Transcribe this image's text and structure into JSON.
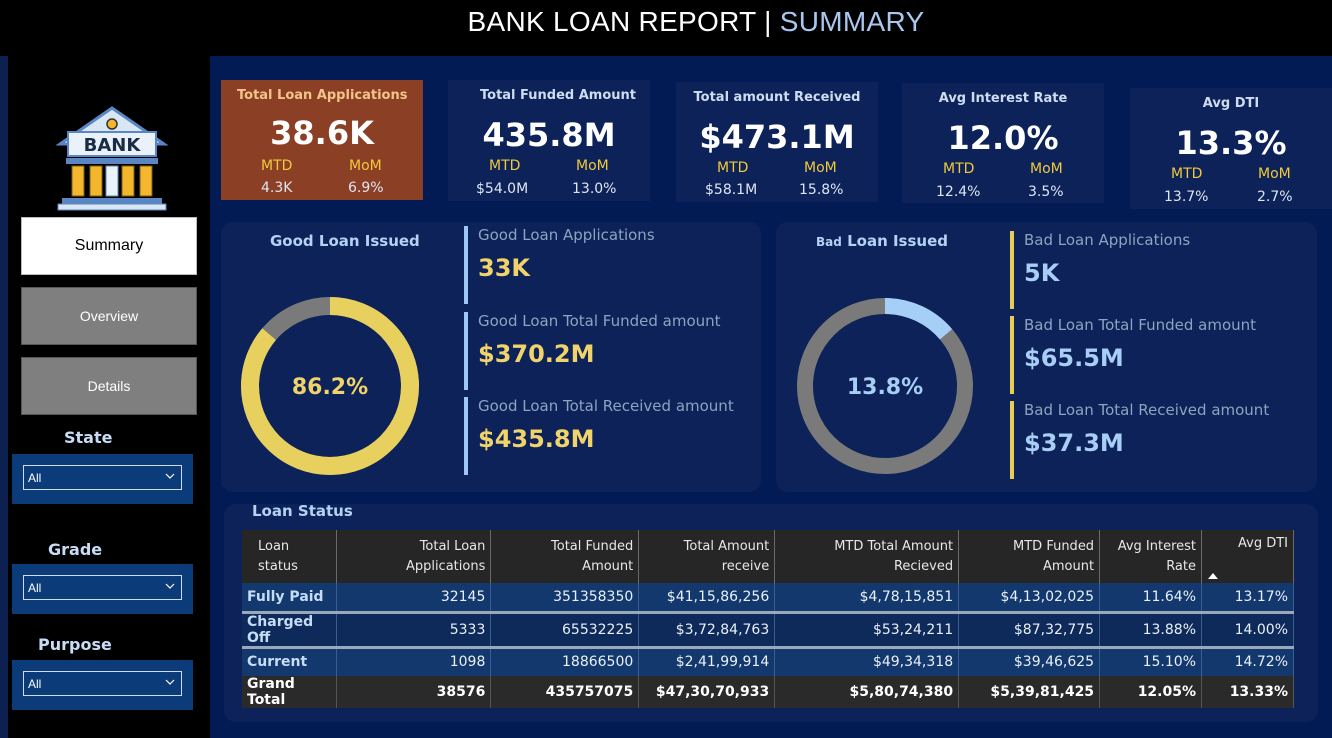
{
  "header": {
    "title_main": "BANK LOAN REPORT | ",
    "title_accent": "SUMMARY"
  },
  "logo": {
    "text": "BANK"
  },
  "nav": [
    {
      "label": "Summary",
      "active": true
    },
    {
      "label": "Overview",
      "active": false
    },
    {
      "label": "Details",
      "active": false
    }
  ],
  "filters": [
    {
      "label": "State",
      "value": "All"
    },
    {
      "label": "Grade",
      "value": "All"
    },
    {
      "label": "Purpose",
      "value": "All"
    }
  ],
  "kpis": [
    {
      "title": "Total Loan Applications",
      "value": "38.6K",
      "mtd_label": "MTD",
      "mom_label": "MoM",
      "mtd": "4.3K",
      "mom": "6.9%"
    },
    {
      "title": "Total Funded Amount",
      "value": "435.8M",
      "mtd_label": "MTD",
      "mom_label": "MoM",
      "mtd": "$54.0M",
      "mom": "13.0%"
    },
    {
      "title": "Total amount Received",
      "value": "$473.1M",
      "mtd_label": "MTD",
      "mom_label": "MoM",
      "mtd": "$58.1M",
      "mom": "15.8%"
    },
    {
      "title": "Avg Interest Rate",
      "value": "12.0%",
      "mtd_label": "MTD",
      "mom_label": "MoM",
      "mtd": "12.4%",
      "mom": "3.5%"
    },
    {
      "title": "Avg DTI",
      "value": "13.3%",
      "mtd_label": "MTD",
      "mom_label": "MoM",
      "mtd": "13.7%",
      "mom": "2.7%"
    }
  ],
  "good_loan": {
    "title": "Good Loan Issued",
    "donut_label": "86.2%",
    "donut_fraction": 0.862,
    "colors": {
      "fill": "#e8d05e",
      "rest": "#7a7a7a"
    },
    "stats": [
      {
        "label": "Good Loan Applications",
        "value": "33K"
      },
      {
        "label": "Good Loan Total Funded amount",
        "value": "$370.2M"
      },
      {
        "label": "Good Loan Total Received amount",
        "value": "$435.8M"
      }
    ]
  },
  "bad_loan": {
    "title_small": "Bad",
    "title_rest": "Loan Issued",
    "donut_label": "13.8%",
    "donut_fraction": 0.138,
    "colors": {
      "fill": "#a6cff7",
      "rest": "#7a7a7a"
    },
    "stats": [
      {
        "label": "Bad Loan Applications",
        "value": "5K"
      },
      {
        "label": "Bad Loan Total Funded amount",
        "value": "$65.5M"
      },
      {
        "label": "Bad Loan Total Received amount",
        "value": "$37.3M"
      }
    ]
  },
  "loan_status": {
    "title": "Loan Status",
    "headers": [
      [
        "Loan status"
      ],
      [
        "Total Loan",
        "Applications"
      ],
      [
        "Total Funded",
        "Amount"
      ],
      [
        "Total Amount",
        "receive"
      ],
      [
        "MTD Total Amount",
        "Recieved"
      ],
      [
        "MTD Funded",
        "Amount"
      ],
      [
        "Avg Interest",
        "Rate"
      ],
      [
        "Avg DTI"
      ]
    ],
    "rows": [
      [
        "Fully Paid",
        "32145",
        "351358350",
        "$41,15,86,256",
        "$4,78,15,851",
        "$4,13,02,025",
        "11.64%",
        "13.17%"
      ],
      [
        "Charged Off",
        "5333",
        "65532225",
        "$3,72,84,763",
        "$53,24,211",
        "$87,32,775",
        "13.88%",
        "14.00%"
      ],
      [
        "Current",
        "1098",
        "18866500",
        "$2,41,99,914",
        "$49,34,318",
        "$39,46,625",
        "15.10%",
        "14.72%"
      ]
    ],
    "total": [
      "Grand Total",
      "38576",
      "435757075",
      "$47,30,70,933",
      "$5,80,74,380",
      "$5,39,81,425",
      "12.05%",
      "13.33%"
    ]
  }
}
